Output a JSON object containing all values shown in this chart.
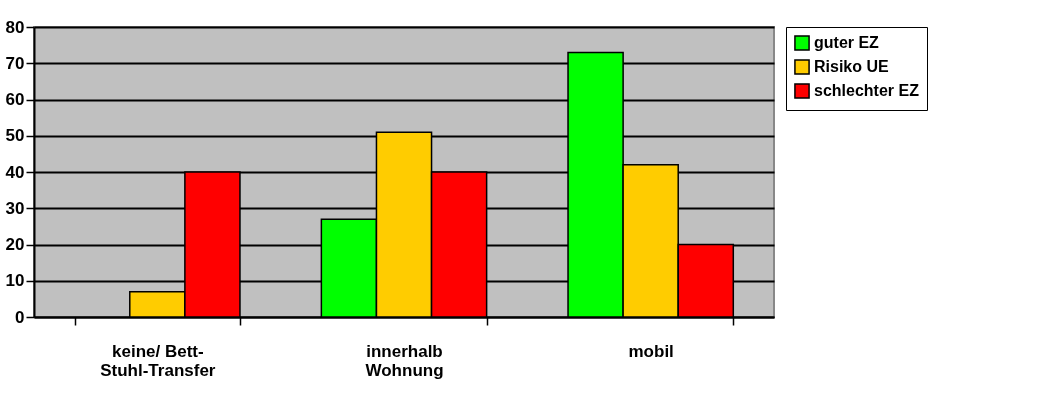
{
  "chart_data": {
    "type": "bar",
    "categories": [
      "keine/ Bett-Stuhl-Transfer",
      "innerhalb Wohnung",
      "mobil"
    ],
    "series": [
      {
        "name": "guter EZ",
        "color": "#00ff00",
        "values": [
          null,
          27,
          73
        ]
      },
      {
        "name": "Risiko UE",
        "color": "#ffcc00",
        "values": [
          7,
          51,
          42
        ]
      },
      {
        "name": "schlechter EZ",
        "color": "#ff0000",
        "values": [
          40,
          40,
          20
        ]
      }
    ],
    "ylim": [
      0,
      80
    ],
    "yticks": [
      0,
      10,
      20,
      30,
      40,
      50,
      60,
      70,
      80
    ],
    "grid": "y",
    "legend": "right"
  }
}
